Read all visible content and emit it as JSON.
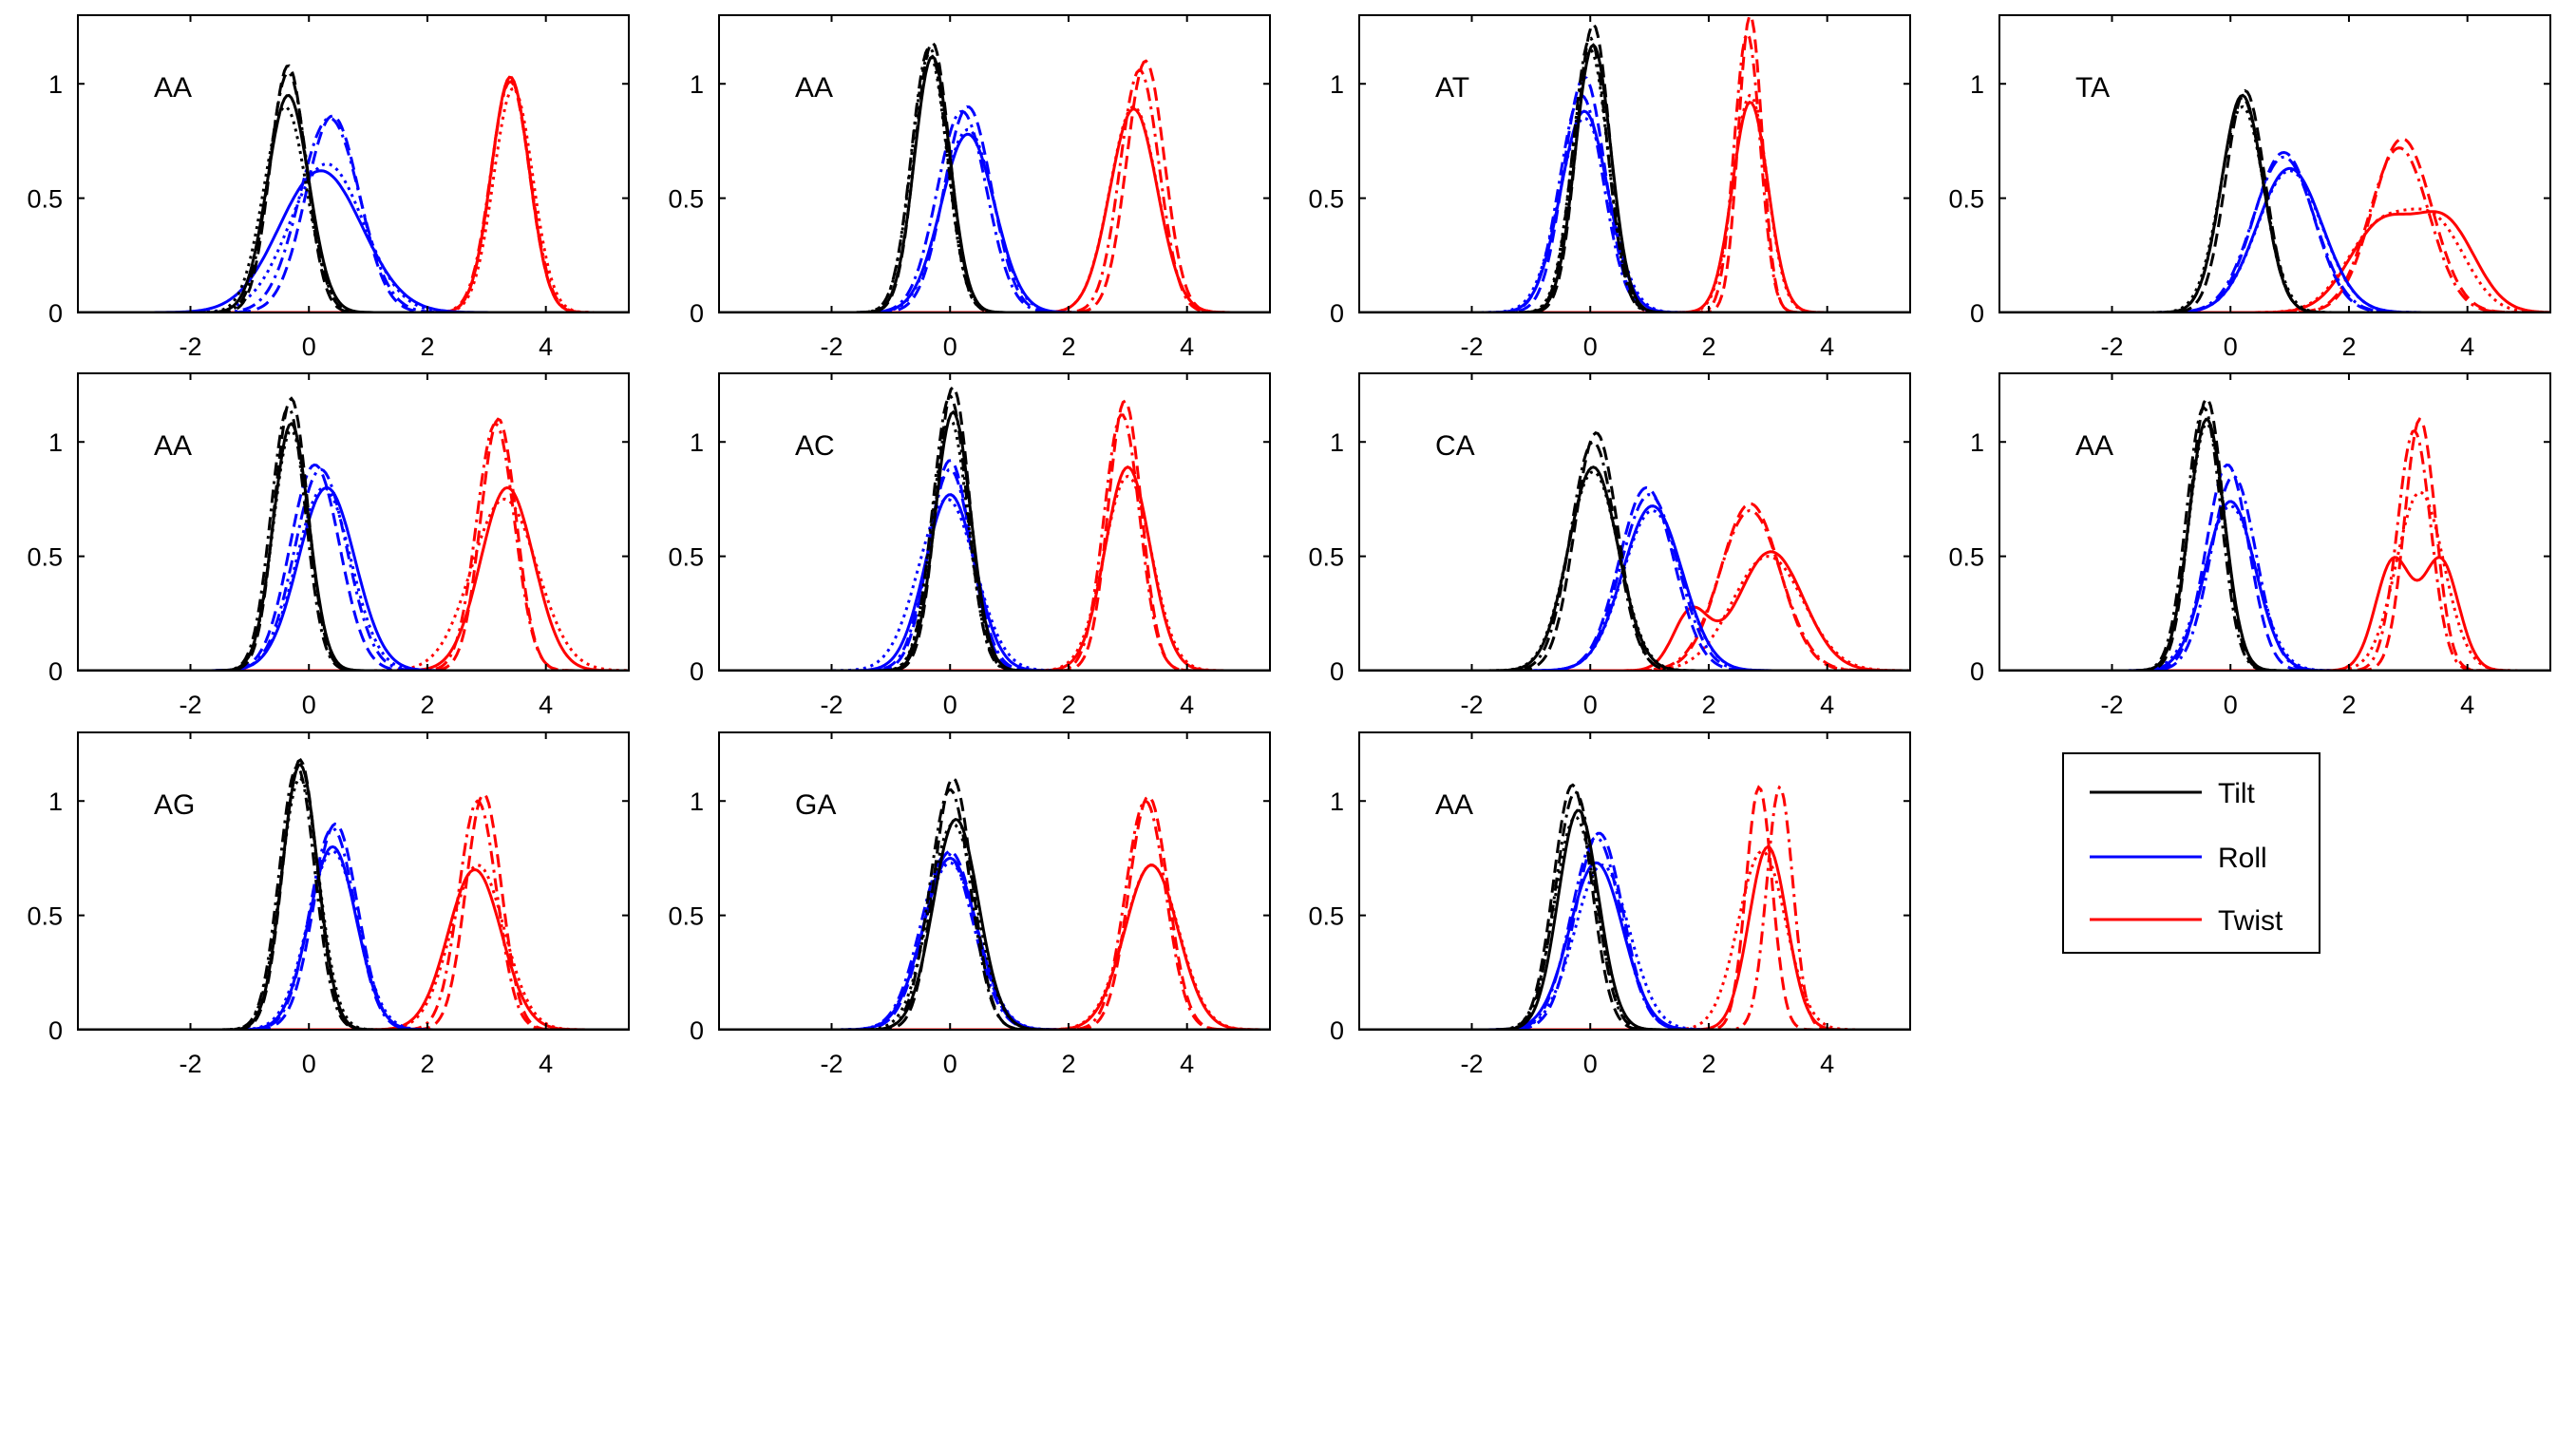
{
  "chart_data": {
    "type": "line",
    "figure_layout": "3 rows x 4 columns of small multiples (11 panels) plus a shared legend",
    "x_ticks": [
      -2,
      0,
      2,
      4
    ],
    "y_ticks": [
      0,
      0.5,
      1
    ],
    "y_tick_labels": [
      "0",
      "0.5",
      "1"
    ],
    "xlim": [
      -3.9,
      5.4
    ],
    "ylim": [
      0,
      1.3
    ],
    "grid": false,
    "line_styles": [
      "solid",
      "dashed",
      "dash-dot",
      "dotted"
    ],
    "legend": {
      "placement": "row-3 column-4 slot",
      "entries": [
        {
          "name": "Tilt",
          "color": "#000000"
        },
        {
          "name": "Roll",
          "color": "#0000ff"
        },
        {
          "name": "Twist",
          "color": "#ff0000"
        }
      ]
    },
    "panels": [
      {
        "label": "AA",
        "tilt": [
          [
            -0.35,
            0.95,
            0.35
          ],
          [
            -0.35,
            1.08,
            0.3
          ],
          [
            -0.35,
            1.05,
            0.32
          ],
          [
            -0.4,
            0.9,
            0.36
          ]
        ],
        "roll": [
          [
            0.2,
            0.62,
            0.7
          ],
          [
            0.4,
            0.86,
            0.45
          ],
          [
            0.35,
            0.85,
            0.5
          ],
          [
            0.3,
            0.65,
            0.62
          ]
        ],
        "twist": [
          [
            3.4,
            1.03,
            0.32
          ],
          [
            3.4,
            1.02,
            0.32
          ],
          [
            3.4,
            1.01,
            0.33
          ],
          [
            3.45,
            0.98,
            0.33
          ]
        ]
      },
      {
        "label": "AA",
        "tilt": [
          [
            -0.3,
            1.12,
            0.3
          ],
          [
            -0.3,
            1.18,
            0.29
          ],
          [
            -0.35,
            1.16,
            0.3
          ],
          [
            -0.35,
            1.13,
            0.3
          ]
        ],
        "roll": [
          [
            0.3,
            0.78,
            0.45
          ],
          [
            0.3,
            0.9,
            0.4
          ],
          [
            0.2,
            0.88,
            0.42
          ],
          [
            0.3,
            0.8,
            0.44
          ]
        ],
        "twist": [
          [
            3.1,
            0.89,
            0.4
          ],
          [
            3.3,
            1.1,
            0.32
          ],
          [
            3.2,
            1.06,
            0.33
          ],
          [
            3.1,
            0.9,
            0.4
          ]
        ]
      },
      {
        "label": "AT",
        "tilt": [
          [
            0.05,
            1.17,
            0.3
          ],
          [
            0.05,
            1.26,
            0.28
          ],
          [
            0.0,
            1.2,
            0.29
          ],
          [
            0.0,
            1.15,
            0.3
          ]
        ],
        "roll": [
          [
            -0.1,
            0.88,
            0.4
          ],
          [
            -0.1,
            1.03,
            0.35
          ],
          [
            -0.15,
            0.95,
            0.37
          ],
          [
            -0.1,
            0.85,
            0.42
          ]
        ],
        "twist": [
          [
            2.7,
            0.92,
            0.3
          ],
          [
            2.7,
            1.3,
            0.2
          ],
          [
            2.65,
            1.22,
            0.22
          ],
          [
            2.7,
            0.95,
            0.29
          ]
        ]
      },
      {
        "label": "TA",
        "tilt": [
          [
            0.2,
            0.95,
            0.35
          ],
          [
            0.25,
            0.97,
            0.33
          ],
          [
            0.2,
            0.94,
            0.35
          ],
          [
            0.2,
            0.9,
            0.37
          ]
        ],
        "roll": [
          [
            1.0,
            0.63,
            0.55
          ],
          [
            0.9,
            0.7,
            0.5
          ],
          [
            0.9,
            0.68,
            0.52
          ],
          [
            1.0,
            0.62,
            0.55
          ]
        ],
        "twist": [
          [
            2.55,
            0.38,
            0.55
          ],
          [
            3.65,
            0.37,
            0.5
          ],
          [
            2.9,
            0.76,
            0.5
          ],
          [
            2.85,
            0.72,
            0.5
          ],
          [
            2.5,
            0.36,
            0.55
          ],
          [
            3.5,
            0.35,
            0.5
          ]
        ]
      },
      {
        "label": "AA",
        "tilt": [
          [
            -0.3,
            1.08,
            0.3
          ],
          [
            -0.3,
            1.19,
            0.28
          ],
          [
            -0.35,
            1.15,
            0.29
          ],
          [
            -0.3,
            1.05,
            0.3
          ]
        ],
        "roll": [
          [
            0.3,
            0.8,
            0.48
          ],
          [
            0.1,
            0.9,
            0.42
          ],
          [
            0.2,
            0.88,
            0.44
          ],
          [
            0.25,
            0.8,
            0.46
          ]
        ],
        "twist": [
          [
            3.35,
            0.8,
            0.45
          ],
          [
            3.2,
            1.1,
            0.3
          ],
          [
            3.15,
            1.08,
            0.32
          ],
          [
            3.3,
            0.75,
            0.55
          ]
        ]
      },
      {
        "label": "AC",
        "tilt": [
          [
            0.05,
            1.13,
            0.3
          ],
          [
            0.05,
            1.24,
            0.28
          ],
          [
            0.0,
            1.2,
            0.29
          ],
          [
            0.0,
            1.1,
            0.3
          ]
        ],
        "roll": [
          [
            0.0,
            0.77,
            0.42
          ],
          [
            0.0,
            0.92,
            0.35
          ],
          [
            0.0,
            0.88,
            0.37
          ],
          [
            -0.05,
            0.75,
            0.48
          ]
        ],
        "twist": [
          [
            3.0,
            0.89,
            0.38
          ],
          [
            2.95,
            1.18,
            0.28
          ],
          [
            2.9,
            1.12,
            0.3
          ],
          [
            3.0,
            0.85,
            0.4
          ]
        ]
      },
      {
        "label": "CA",
        "tilt": [
          [
            0.05,
            0.89,
            0.42
          ],
          [
            0.1,
            1.04,
            0.36
          ],
          [
            0.05,
            1.0,
            0.38
          ],
          [
            0.05,
            0.87,
            0.43
          ]
        ],
        "roll": [
          [
            1.05,
            0.72,
            0.5
          ],
          [
            0.95,
            0.8,
            0.46
          ],
          [
            1.0,
            0.77,
            0.48
          ],
          [
            1.05,
            0.7,
            0.5
          ]
        ],
        "twist": [
          [
            1.7,
            0.25,
            0.3
          ],
          [
            3.05,
            0.52,
            0.55
          ],
          [
            2.7,
            0.73,
            0.5
          ],
          [
            2.7,
            0.7,
            0.52
          ],
          [
            3.0,
            0.5,
            0.6
          ]
        ]
      },
      {
        "label": "AA",
        "tilt": [
          [
            -0.4,
            1.1,
            0.3
          ],
          [
            -0.4,
            1.19,
            0.28
          ],
          [
            -0.45,
            1.15,
            0.29
          ],
          [
            -0.4,
            1.08,
            0.3
          ]
        ],
        "roll": [
          [
            0.0,
            0.74,
            0.42
          ],
          [
            -0.05,
            0.9,
            0.36
          ],
          [
            0.05,
            0.85,
            0.38
          ],
          [
            0.0,
            0.72,
            0.44
          ]
        ],
        "twist": [
          [
            2.75,
            0.48,
            0.3
          ],
          [
            3.55,
            0.48,
            0.3
          ],
          [
            3.2,
            1.1,
            0.26
          ],
          [
            3.1,
            1.05,
            0.28
          ],
          [
            3.2,
            0.78,
            0.4
          ]
        ]
      },
      {
        "label": "AG",
        "tilt": [
          [
            -0.15,
            1.16,
            0.3
          ],
          [
            -0.15,
            1.18,
            0.29
          ],
          [
            -0.2,
            1.15,
            0.3
          ],
          [
            -0.15,
            1.1,
            0.32
          ]
        ],
        "roll": [
          [
            0.4,
            0.8,
            0.4
          ],
          [
            0.45,
            0.9,
            0.37
          ],
          [
            0.4,
            0.88,
            0.38
          ],
          [
            0.4,
            0.78,
            0.42
          ]
        ],
        "twist": [
          [
            2.8,
            0.7,
            0.45
          ],
          [
            2.95,
            1.03,
            0.3
          ],
          [
            2.85,
            1.0,
            0.32
          ],
          [
            2.85,
            0.72,
            0.45
          ]
        ]
      },
      {
        "label": "GA",
        "tilt": [
          [
            0.1,
            0.92,
            0.38
          ],
          [
            0.05,
            1.1,
            0.32
          ],
          [
            0.0,
            1.05,
            0.34
          ],
          [
            0.05,
            0.9,
            0.4
          ]
        ],
        "roll": [
          [
            0.0,
            0.75,
            0.45
          ],
          [
            0.0,
            0.78,
            0.43
          ],
          [
            -0.05,
            0.77,
            0.44
          ],
          [
            0.0,
            0.73,
            0.46
          ]
        ],
        "twist": [
          [
            3.4,
            0.72,
            0.45
          ],
          [
            3.35,
            1.02,
            0.33
          ],
          [
            3.3,
            1.0,
            0.34
          ],
          [
            3.4,
            0.72,
            0.46
          ]
        ]
      },
      {
        "label": "AA",
        "tilt": [
          [
            -0.2,
            0.96,
            0.34
          ],
          [
            -0.3,
            1.07,
            0.32
          ],
          [
            -0.25,
            1.04,
            0.33
          ],
          [
            -0.25,
            0.93,
            0.35
          ]
        ],
        "roll": [
          [
            0.1,
            0.73,
            0.45
          ],
          [
            0.15,
            0.86,
            0.4
          ],
          [
            0.1,
            0.84,
            0.42
          ],
          [
            0.2,
            0.72,
            0.46
          ]
        ],
        "twist": [
          [
            3.0,
            0.8,
            0.32
          ],
          [
            2.85,
            1.06,
            0.22
          ],
          [
            3.2,
            1.06,
            0.22
          ],
          [
            2.9,
            0.78,
            0.4
          ]
        ]
      }
    ]
  }
}
